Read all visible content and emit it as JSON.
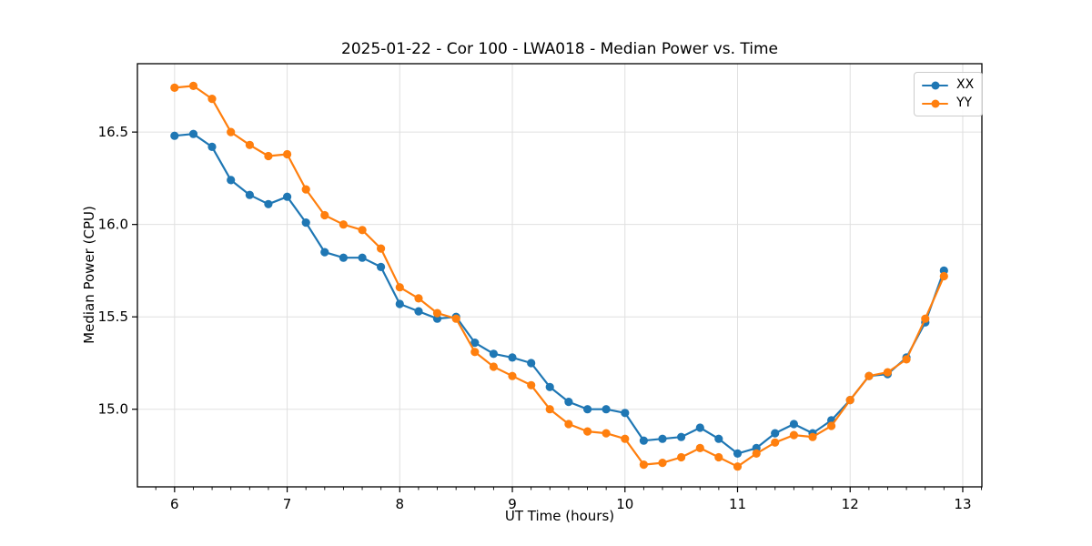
{
  "figure": {
    "title": "2025-01-22 - Cor 100 - LWA018 - Median Power vs. Time",
    "background_color": "#ffffff"
  },
  "chart_data": {
    "type": "line",
    "title": "2025-01-22 - Cor 100 - LWA018 - Median Power vs. Time",
    "xlabel": "UT Time (hours)",
    "ylabel": "Median Power (CPU)",
    "x": [
      6.0,
      6.167,
      6.333,
      6.5,
      6.667,
      6.833,
      7.0,
      7.167,
      7.333,
      7.5,
      7.667,
      7.833,
      8.0,
      8.167,
      8.333,
      8.5,
      8.667,
      8.833,
      9.0,
      9.167,
      9.333,
      9.5,
      9.667,
      9.833,
      10.0,
      10.167,
      10.333,
      10.5,
      10.667,
      10.833,
      11.0,
      11.167,
      11.333,
      11.5,
      11.667,
      11.833,
      12.0,
      12.167,
      12.333,
      12.5,
      12.667,
      12.833
    ],
    "series": [
      {
        "name": "XX",
        "color": "#1f77b4",
        "values": [
          16.48,
          16.49,
          16.42,
          16.24,
          16.16,
          16.11,
          16.15,
          16.01,
          15.85,
          15.82,
          15.82,
          15.77,
          15.57,
          15.53,
          15.49,
          15.5,
          15.36,
          15.3,
          15.28,
          15.25,
          15.12,
          15.04,
          15.0,
          15.0,
          14.98,
          14.83,
          14.84,
          14.85,
          14.9,
          14.84,
          14.76,
          14.79,
          14.87,
          14.92,
          14.87,
          14.94,
          15.05,
          15.18,
          15.19,
          15.28,
          15.47,
          15.75
        ]
      },
      {
        "name": "YY",
        "color": "#ff7f0e",
        "values": [
          16.74,
          16.75,
          16.68,
          16.5,
          16.43,
          16.37,
          16.38,
          16.19,
          16.05,
          16.0,
          15.97,
          15.87,
          15.66,
          15.6,
          15.52,
          15.49,
          15.31,
          15.23,
          15.18,
          15.13,
          15.0,
          14.92,
          14.88,
          14.87,
          14.84,
          14.7,
          14.71,
          14.74,
          14.79,
          14.74,
          14.69,
          14.76,
          14.82,
          14.86,
          14.85,
          14.91,
          15.05,
          15.18,
          15.2,
          15.27,
          15.49,
          15.72
        ]
      }
    ],
    "xlim": [
      5.67,
      13.17
    ],
    "ylim": [
      14.58,
      16.87
    ],
    "xticks": [
      6,
      7,
      8,
      9,
      10,
      11,
      12,
      13
    ],
    "yticks": [
      15.0,
      15.5,
      16.0,
      16.5
    ],
    "x_minor_divisions_per_unit": 6,
    "grid": true,
    "legend": {
      "position": "upper right",
      "entries": [
        "XX",
        "YY"
      ]
    },
    "style": {
      "grid_color": "#e0e0e0",
      "spine_color": "#000000",
      "text_color": "#000000",
      "line_width": 2.2,
      "marker_radius": 4.6
    }
  }
}
